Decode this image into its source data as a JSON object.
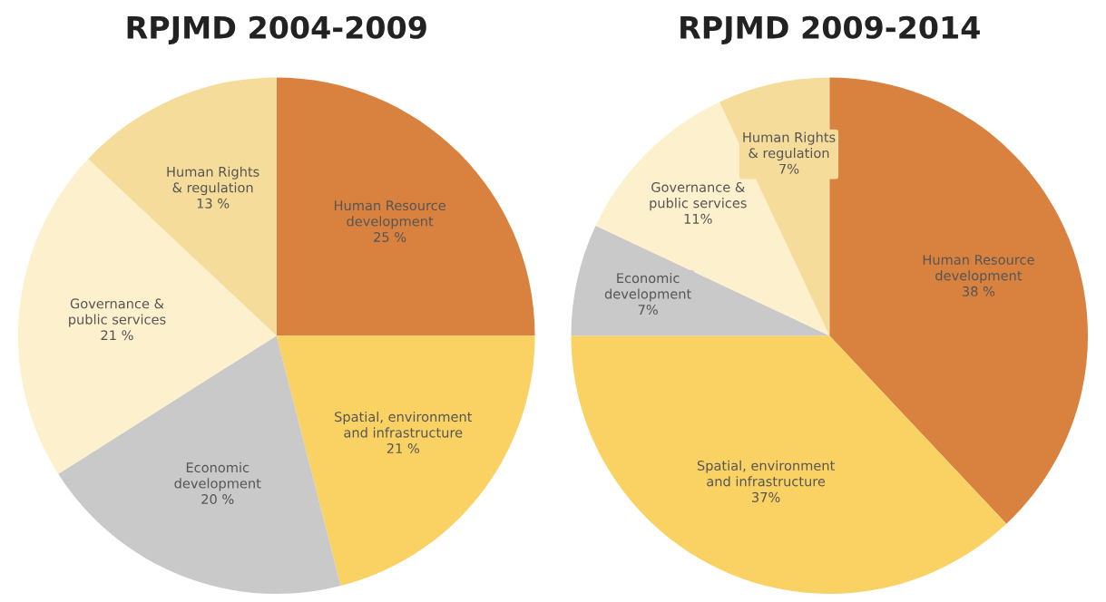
{
  "chart_data": [
    {
      "type": "pie",
      "title": "RPJMD 2004-2009",
      "categories": [
        "Human Resource\ndevelopment",
        "Spatial, environment\nand infrastructure",
        "Economic\ndevelopment",
        "Governance &\npublic services",
        "Human Rights\n& regulation"
      ],
      "values": [
        25,
        21,
        20,
        21,
        13
      ],
      "value_labels": [
        "25 %",
        "21 %",
        "20 %",
        "21 %",
        "13 %"
      ],
      "colors": [
        "#d9823f",
        "#f9d263",
        "#c9c9c9",
        "#fdf0cc",
        "#f6dc9a"
      ],
      "legend": false
    },
    {
      "type": "pie",
      "title": "RPJMD 2009-2014",
      "categories": [
        "Human Resource\ndevelopment",
        "Spatial, environment\nand infrastructure",
        "Economic\ndevelopment",
        "Governance &\npublic services",
        "Human Rights\n& regulation"
      ],
      "values": [
        38,
        37,
        7,
        11,
        7
      ],
      "value_labels": [
        "38 %",
        "37%",
        "7%",
        "11%",
        "7%"
      ],
      "colors": [
        "#d9823f",
        "#f9d263",
        "#c9c9c9",
        "#fdf0cc",
        "#f6dc9a"
      ],
      "legend": false
    }
  ]
}
